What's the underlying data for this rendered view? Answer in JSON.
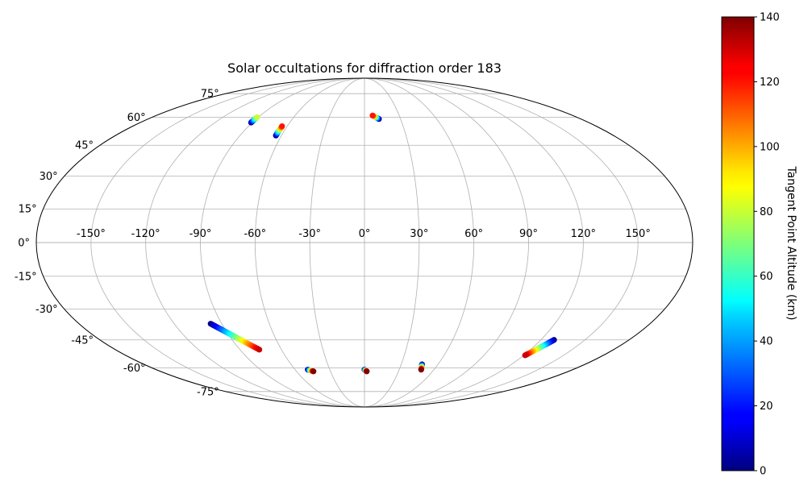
{
  "chart_data": {
    "type": "scatter",
    "projection": "mollweide",
    "title": "Solar occultations for diffraction order 183",
    "grid": true,
    "lon_ticks": [
      -150,
      -120,
      -90,
      -60,
      -30,
      0,
      30,
      60,
      90,
      120,
      150
    ],
    "lon_tick_labels": [
      "-150°",
      "-120°",
      "-90°",
      "-60°",
      "-30°",
      "0°",
      "30°",
      "60°",
      "90°",
      "120°",
      "150°"
    ],
    "lat_ticks": [
      75,
      60,
      45,
      30,
      15,
      0,
      -15,
      -30,
      -45,
      -60,
      -75
    ],
    "lat_tick_labels": [
      "75°",
      "60°",
      "45°",
      "30°",
      "15°",
      "0°",
      "-15°",
      "-30°",
      "-45°",
      "-60°",
      "-75°"
    ],
    "colorbar": {
      "label": "Tangent Point Altitude (km)",
      "colormap": "jet",
      "range": [
        0,
        140
      ],
      "ticks": [
        0,
        20,
        40,
        60,
        80,
        100,
        120,
        140
      ],
      "tick_labels": [
        "0",
        "20",
        "40",
        "60",
        "80",
        "100",
        "120",
        "140"
      ]
    },
    "occultations": [
      {
        "lon_start": -91,
        "lat_start": 57,
        "lon_end": -91,
        "lat_end": 60,
        "alt_start": 0,
        "alt_end": 80
      },
      {
        "lon_start": -64,
        "lat_start": 50,
        "lon_end": -64,
        "lat_end": 55,
        "alt_start": 0,
        "alt_end": 120
      },
      {
        "lon_start": 12,
        "lat_start": 59,
        "lon_end": 7,
        "lat_end": 61,
        "alt_start": 0,
        "alt_end": 120
      },
      {
        "lon_start": -97,
        "lat_start": -37,
        "lon_end": -76,
        "lat_end": -50,
        "alt_start": 0,
        "alt_end": 130
      },
      {
        "lon_start": -49,
        "lat_start": -61,
        "lon_end": -45,
        "lat_end": -62,
        "alt_start": 0,
        "alt_end": 140
      },
      {
        "lon_start": 0,
        "lat_start": -61,
        "lon_end": 2,
        "lat_end": -62,
        "alt_start": 0,
        "alt_end": 140
      },
      {
        "lon_start": 47,
        "lat_start": -58,
        "lon_end": 49,
        "lat_end": -61,
        "alt_start": 0,
        "alt_end": 140
      },
      {
        "lon_start": 129,
        "lat_start": -45,
        "lon_end": 121,
        "lat_end": -53,
        "alt_start": 0,
        "alt_end": 130
      }
    ]
  }
}
